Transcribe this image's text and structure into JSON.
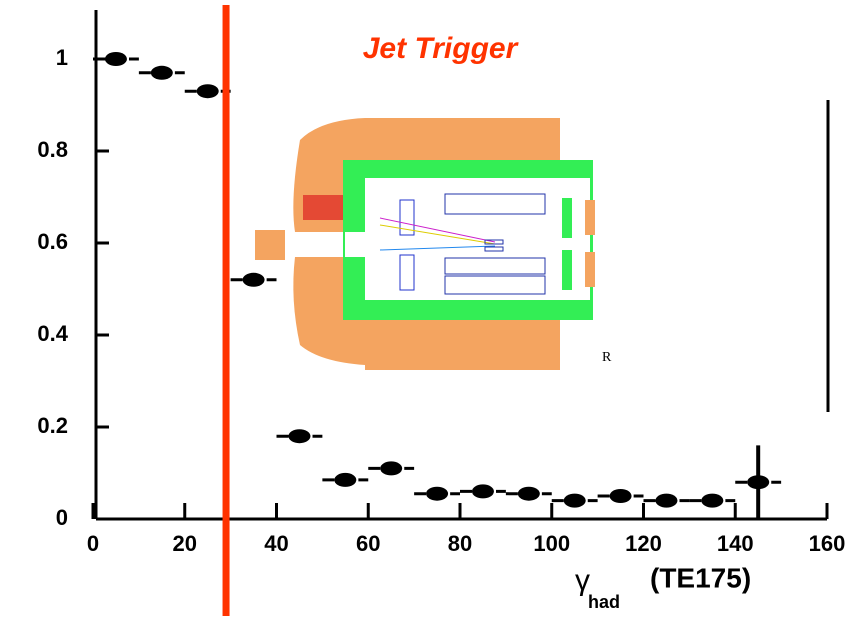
{
  "chart_data": {
    "type": "scatter",
    "title": "Jet Trigger",
    "title_color": "#ff3300",
    "x": [
      5,
      15,
      25,
      35,
      45,
      55,
      65,
      75,
      85,
      95,
      105,
      115,
      125,
      135,
      145
    ],
    "values": [
      1.0,
      0.97,
      0.93,
      0.52,
      0.18,
      0.085,
      0.11,
      0.055,
      0.06,
      0.055,
      0.04,
      0.05,
      0.04,
      0.04,
      0.08
    ],
    "xerr": [
      5,
      5,
      5,
      5,
      5,
      5,
      5,
      5,
      5,
      5,
      5,
      5,
      5,
      5,
      5
    ],
    "yerr": [
      null,
      null,
      null,
      null,
      null,
      null,
      null,
      null,
      null,
      null,
      null,
      null,
      null,
      null,
      0.08
    ],
    "color": "#000000",
    "xlim": [
      0,
      160
    ],
    "ylim": [
      0,
      1.1
    ],
    "xticks": [
      0,
      20,
      40,
      60,
      80,
      100,
      120,
      140,
      160
    ],
    "yticks": [
      0,
      0.2,
      0.4,
      0.6,
      0.8,
      1
    ],
    "threshold_line": {
      "x": 29,
      "color": "#ff3300"
    },
    "x_label": {
      "symbol": "γ",
      "subscript": "had",
      "suffix": "(TE175)"
    },
    "inset_label": "R"
  }
}
